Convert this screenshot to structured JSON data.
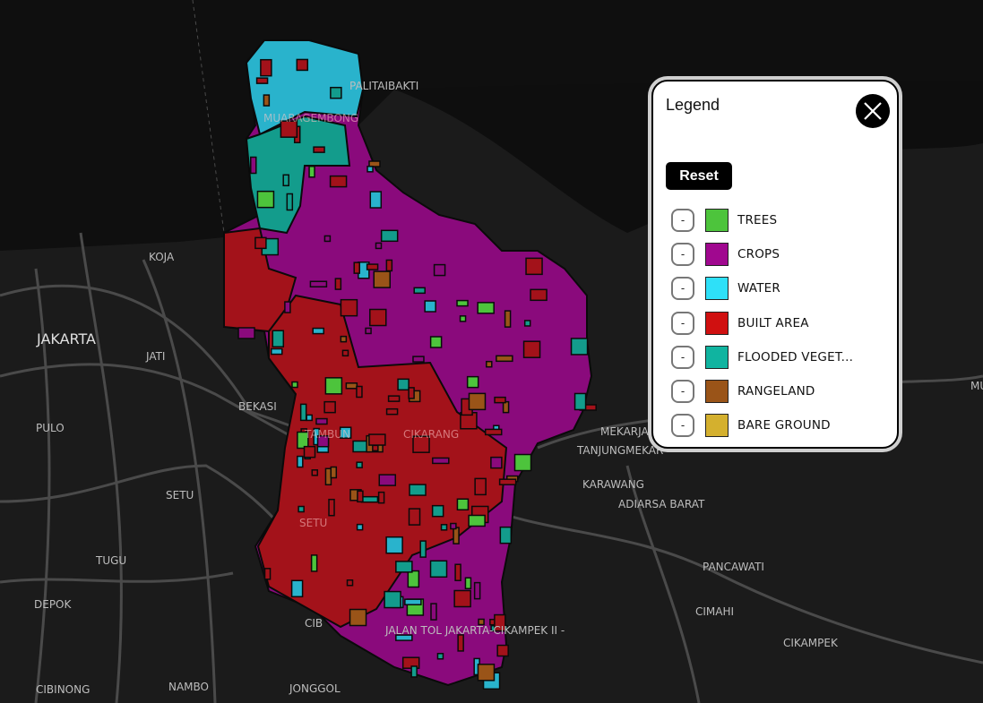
{
  "legend": {
    "title": "Legend",
    "reset_label": "Reset",
    "toggle_label": "-",
    "items": [
      {
        "label": "TREES",
        "color": "#4dc43c"
      },
      {
        "label": "CROPS",
        "color": "#a0088f"
      },
      {
        "label": "WATER",
        "color": "#2ee0f8"
      },
      {
        "label": "BUILT AREA",
        "color": "#d01010"
      },
      {
        "label": "FLOODED VEGET...",
        "color": "#10b4a0"
      },
      {
        "label": "RANGELAND",
        "color": "#9a5418"
      },
      {
        "label": "BARE GROUND",
        "color": "#d4b02e"
      }
    ]
  },
  "map": {
    "labels": {
      "palitaibakti": "PALITAIBAKTI",
      "muaragembong": "MUARAGEMBONG",
      "koja": "KOJA",
      "jakarta": "JAKARTA",
      "jati": "JATI",
      "bekasi": "BEKASI",
      "pulo": "PULO",
      "setu1": "SETU",
      "setu2": "SETU",
      "tugu": "TUGU",
      "depok": "DEPOK",
      "cibinong": "CIBINONG",
      "nambo": "NAMBO",
      "jonggol": "JONGGOL",
      "cib": "CIB",
      "tambun": "TAMBUN",
      "cikarang": "CIKARANG",
      "jalantol": "JALAN TOL JAKARTA-CIKAMPEK II -",
      "mekarja": "MEKARJA",
      "tanjungmekar": "TANJUNGMEKAR",
      "karawang": "KARAWANG",
      "adiarsa": "ADIARSA BARAT",
      "pancawati": "PANCAWATI",
      "cimahi": "CIMAHI",
      "cikampek": "CIKAMPEK",
      "mu": "MU"
    }
  }
}
